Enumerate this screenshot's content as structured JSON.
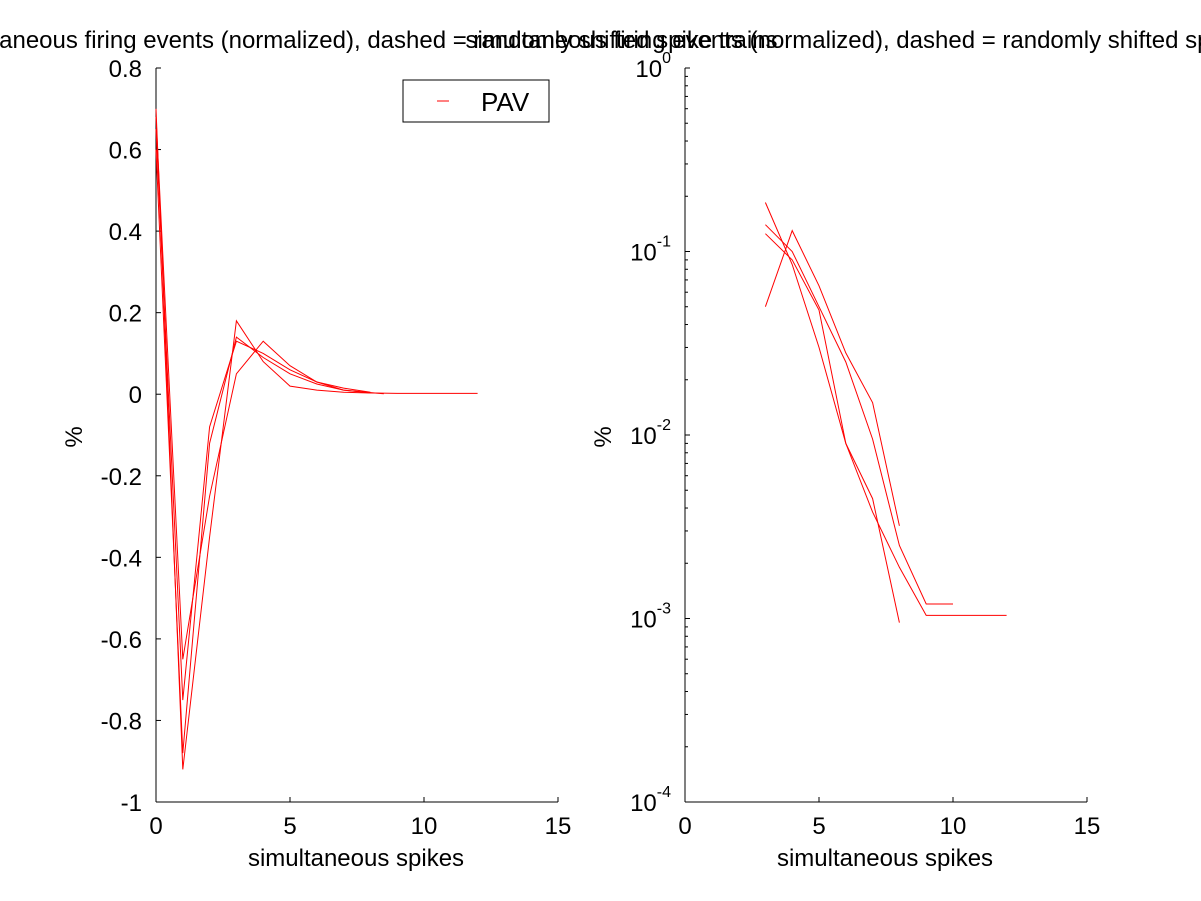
{
  "chart_data": [
    {
      "type": "line",
      "title": "simultaneous firing events (normalized), dashed = randomly shifted spike trains",
      "xlabel": "simultaneous spikes",
      "ylabel": "%",
      "xlim": [
        0,
        15
      ],
      "ylim": [
        -1,
        0.8
      ],
      "xscale": "linear",
      "yscale": "linear",
      "xticks": [
        0,
        5,
        10,
        15
      ],
      "xtick_labels": [
        "0",
        "5",
        "10",
        "15"
      ],
      "yticks": [
        -1,
        -0.8,
        -0.6,
        -0.4,
        -0.2,
        0,
        0.2,
        0.4,
        0.6,
        0.8
      ],
      "ytick_labels": [
        "-1",
        "-0.8",
        "-0.6",
        "-0.4",
        "-0.2",
        "0",
        "0.2",
        "0.4",
        "0.6",
        "0.8"
      ],
      "grid": false,
      "legend": {
        "position": "top-right",
        "entries": [
          "PAV"
        ]
      },
      "series": [
        {
          "name": "PAV",
          "color": "#ff0000",
          "x": [
            0,
            1,
            2,
            3,
            4,
            5,
            6,
            7,
            8,
            9,
            10,
            11,
            12
          ],
          "y": [
            0.7,
            -0.92,
            -0.35,
            0.18,
            0.08,
            0.02,
            0.01,
            0.005,
            0.003,
            0.002,
            0.002,
            0.002,
            0.002
          ]
        },
        {
          "color": "#ff0000",
          "x": [
            0,
            1,
            2,
            3,
            4,
            5,
            6,
            7,
            8
          ],
          "y": [
            0.65,
            -0.75,
            -0.08,
            0.13,
            0.1,
            0.06,
            0.03,
            0.015,
            0.005
          ]
        },
        {
          "color": "#ff0000",
          "x": [
            0,
            1,
            2,
            3,
            4,
            5,
            6,
            7,
            8
          ],
          "y": [
            0.6,
            -0.88,
            -0.12,
            0.14,
            0.09,
            0.05,
            0.025,
            0.01,
            0.003
          ]
        },
        {
          "color": "#ff0000",
          "x": [
            0,
            1,
            2,
            3,
            4,
            5,
            6,
            7,
            8.5
          ],
          "y": [
            0.68,
            -0.65,
            -0.25,
            0.05,
            0.13,
            0.07,
            0.03,
            0.01,
            0.001
          ]
        }
      ]
    },
    {
      "type": "line",
      "title": "simultaneous firing events (normalized), dashed = randomly shifted spike trains",
      "xlabel": "simultaneous spikes",
      "ylabel": "%",
      "xlim": [
        0,
        15
      ],
      "ylim": [
        0.0001,
        1
      ],
      "xscale": "linear",
      "yscale": "log",
      "xticks": [
        0,
        5,
        10,
        15
      ],
      "xtick_labels": [
        "0",
        "5",
        "10",
        "15"
      ],
      "yticks": [
        0.0001,
        0.001,
        0.01,
        0.1,
        1
      ],
      "ytick_labels": [
        "10^-4",
        "10^-3",
        "10^-2",
        "10^-1",
        "10^0"
      ],
      "grid": false,
      "series": [
        {
          "color": "#ff0000",
          "x": [
            3,
            4,
            5,
            6,
            7,
            8
          ],
          "y": [
            0.185,
            0.085,
            0.03,
            0.009,
            0.0045,
            0.00095
          ]
        },
        {
          "color": "#ff0000",
          "x": [
            3,
            4,
            5,
            6,
            7,
            8,
            9,
            10
          ],
          "y": [
            0.14,
            0.1,
            0.05,
            0.025,
            0.0095,
            0.0025,
            0.0012,
            0.0012
          ]
        },
        {
          "color": "#ff0000",
          "x": [
            3,
            4,
            5,
            6,
            7,
            8,
            9,
            10,
            11,
            12
          ],
          "y": [
            0.125,
            0.09,
            0.048,
            0.009,
            0.0038,
            0.0019,
            0.00104,
            0.00104,
            0.00104,
            0.00104
          ]
        },
        {
          "color": "#ff0000",
          "x": [
            3,
            4,
            5,
            6,
            7,
            8
          ],
          "y": [
            0.05,
            0.13,
            0.065,
            0.028,
            0.015,
            0.0032
          ]
        }
      ]
    }
  ]
}
